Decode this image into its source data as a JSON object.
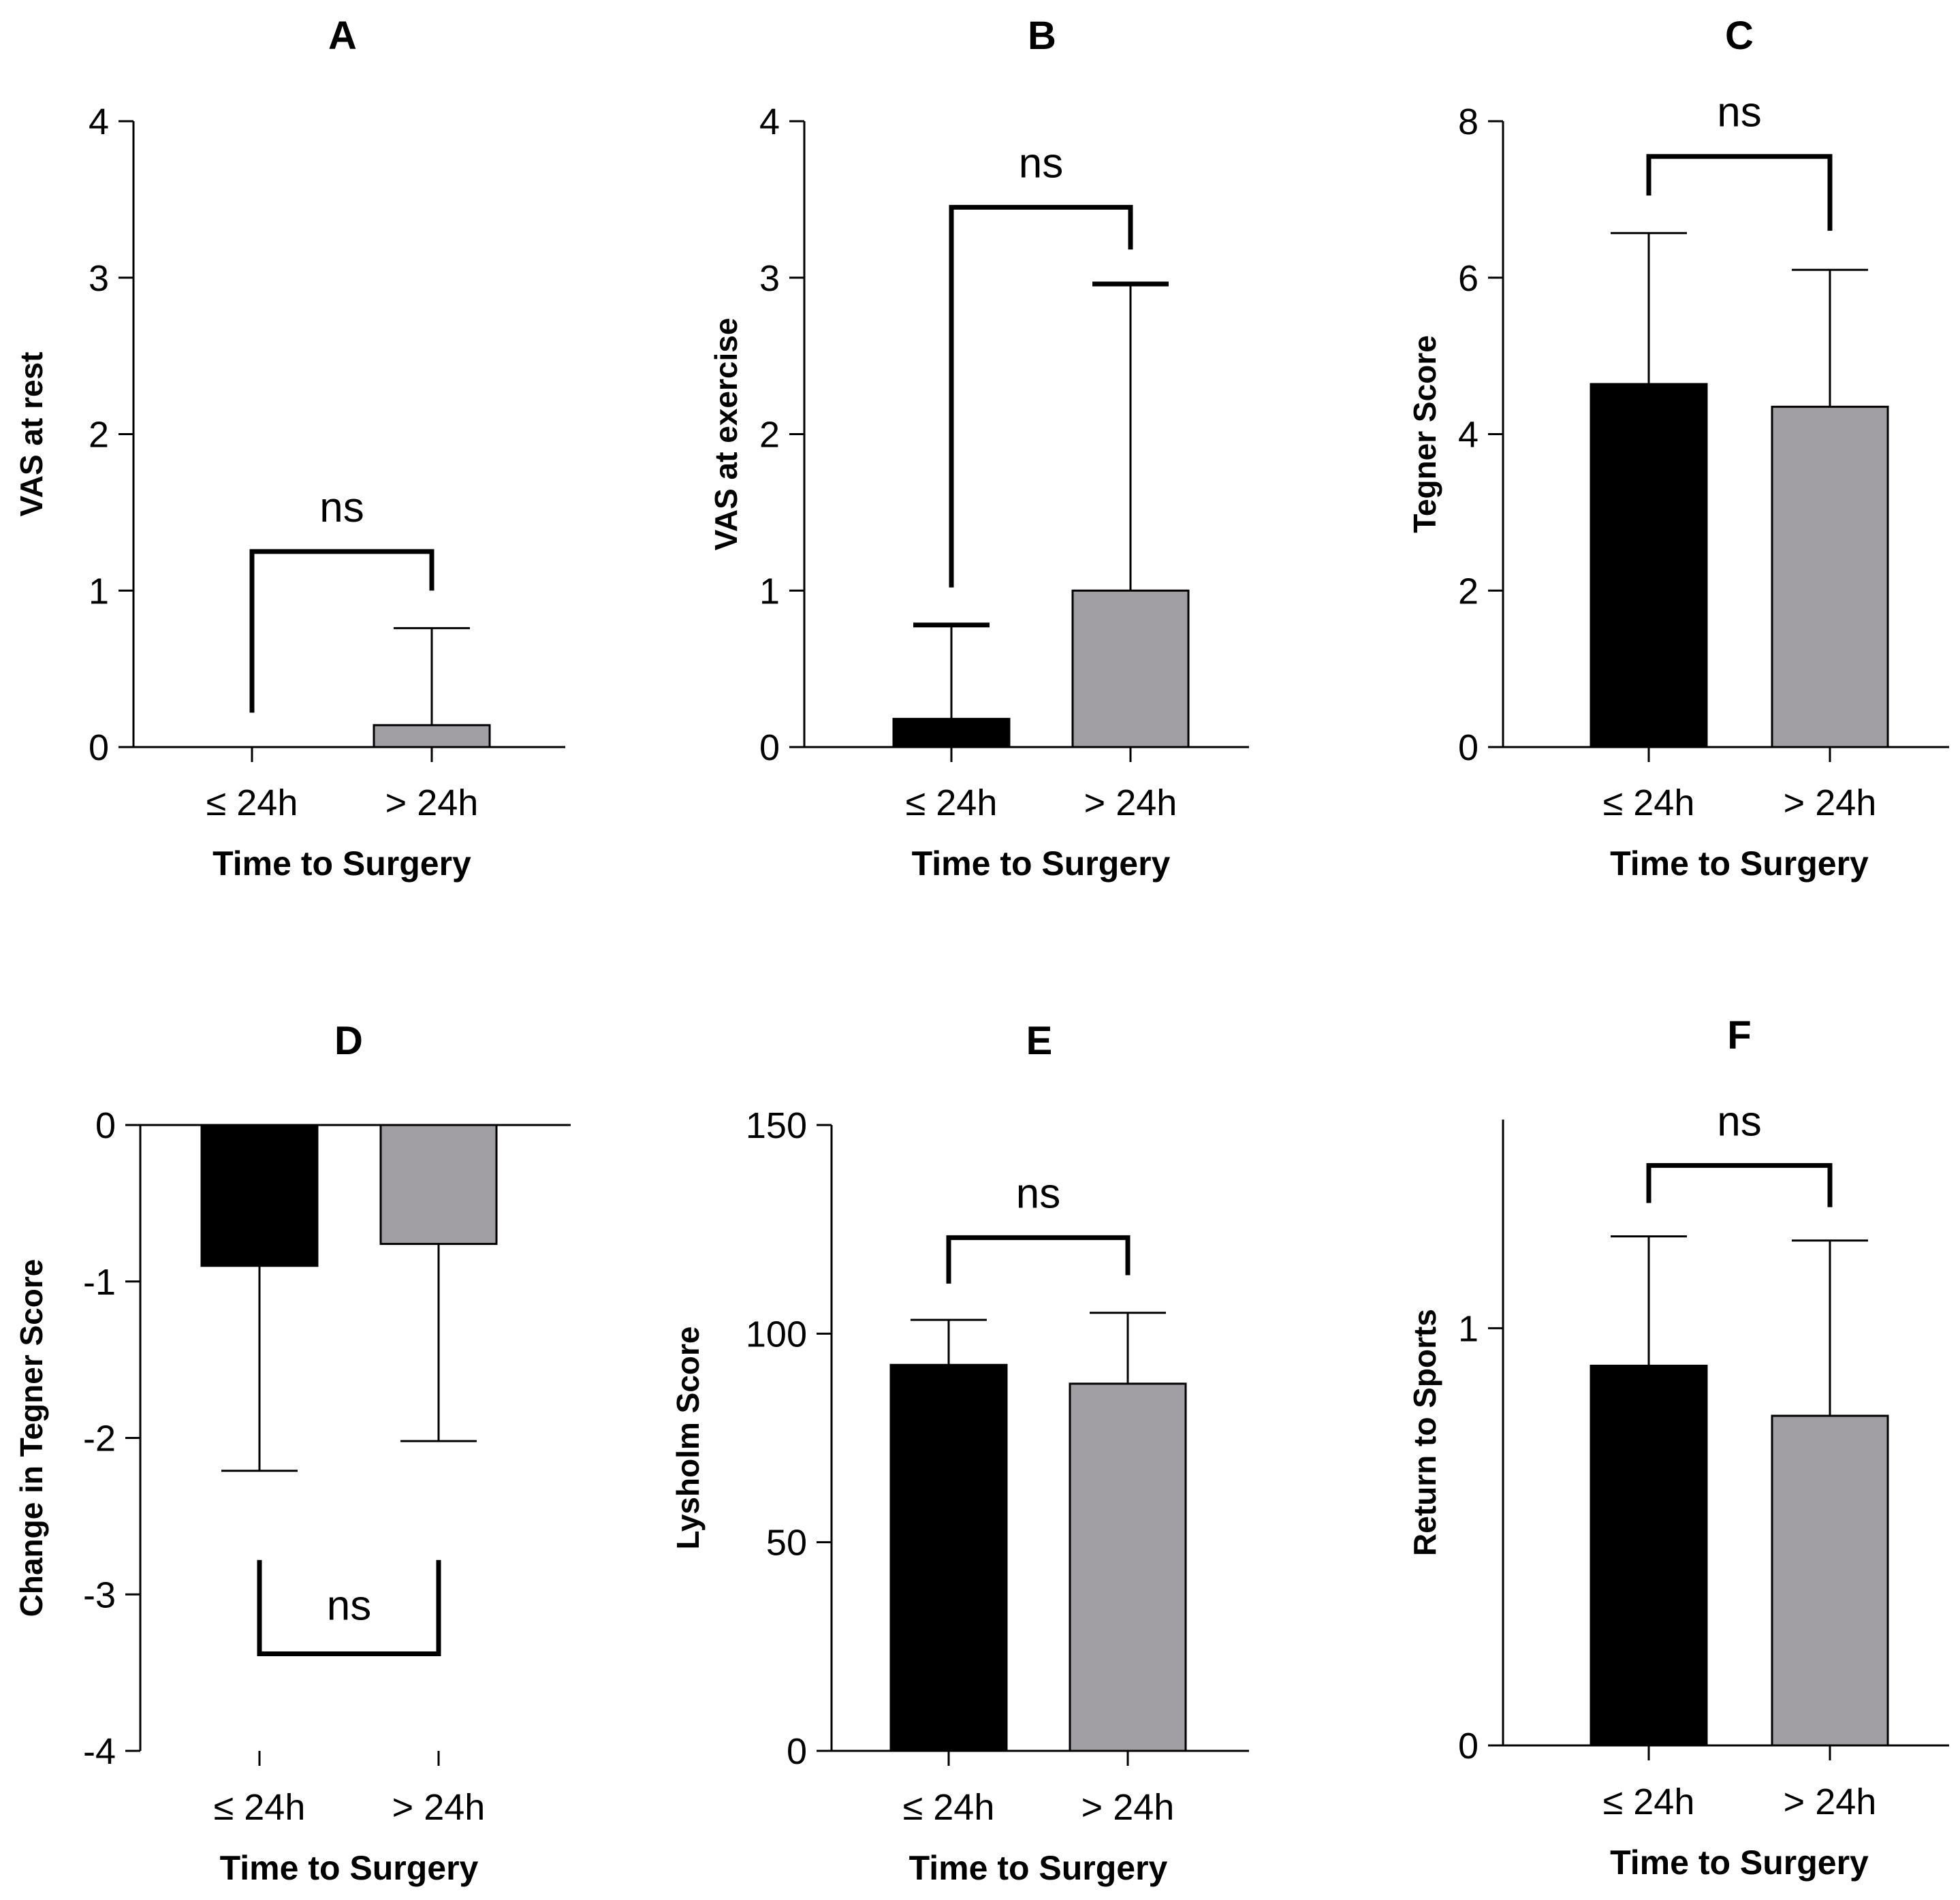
{
  "chart_data": [
    {
      "id": "A",
      "type": "bar",
      "title": "A",
      "xlabel": "Time to Surgery",
      "ylabel": "VAS at rest",
      "categories": [
        "≤ 24h",
        "> 24h"
      ],
      "values": [
        0,
        0.14
      ],
      "error_upper": [
        0,
        0.62
      ],
      "colors": [
        "#000000",
        "#a19fa4"
      ],
      "ylim": [
        0,
        4
      ],
      "yticks": [
        0,
        1,
        2,
        3,
        4
      ],
      "ytick_labels": [
        "0",
        "1",
        "2",
        "3",
        "4"
      ],
      "significance": {
        "label": "ns",
        "from": 0,
        "to": 1,
        "y": 1.25,
        "leg_ends": [
          0.22,
          1.0
        ],
        "side": "above"
      }
    },
    {
      "id": "B",
      "type": "bar",
      "title": "B",
      "xlabel": "Time to Surgery",
      "ylabel": "VAS at exercise",
      "categories": [
        "≤ 24h",
        "> 24h"
      ],
      "values": [
        0.18,
        1.0
      ],
      "error_upper": [
        0.6,
        1.96
      ],
      "colors": [
        "#000000",
        "#a19fa4"
      ],
      "ylim": [
        0,
        4
      ],
      "yticks": [
        0,
        1,
        2,
        3,
        4
      ],
      "ytick_labels": [
        "0",
        "1",
        "2",
        "3",
        "4"
      ],
      "significance": {
        "label": "ns",
        "from": 0,
        "to": 1,
        "y": 3.45,
        "leg_ends": [
          1.02,
          3.18
        ],
        "side": "above"
      }
    },
    {
      "id": "C",
      "type": "bar",
      "title": "C",
      "xlabel": "Time to Surgery",
      "ylabel": "Tegner Score",
      "categories": [
        "≤ 24h",
        "> 24h"
      ],
      "values": [
        4.64,
        4.35
      ],
      "error_upper": [
        1.93,
        1.75
      ],
      "colors": [
        "#000000",
        "#a19fa4"
      ],
      "ylim": [
        0,
        8
      ],
      "yticks": [
        0,
        2,
        4,
        6,
        8
      ],
      "ytick_labels": [
        "0",
        "2",
        "4",
        "6",
        "8"
      ],
      "significance": {
        "label": "ns",
        "from": 0,
        "to": 1,
        "y": 7.55,
        "leg_ends": [
          7.05,
          6.6
        ],
        "side": "above"
      }
    },
    {
      "id": "D",
      "type": "bar",
      "title": "D",
      "xlabel": "Time to Surgery",
      "ylabel": "Change in Tegner Score",
      "categories": [
        "≤ 24h",
        "> 24h"
      ],
      "values": [
        -0.9,
        -0.76
      ],
      "error_lower": [
        1.31,
        1.26
      ],
      "colors": [
        "#000000",
        "#a19fa4"
      ],
      "ylim": [
        -4,
        0
      ],
      "yticks": [
        -4,
        -3,
        -2,
        -1,
        0
      ],
      "ytick_labels": [
        "-4",
        "-3",
        "-2",
        "-1",
        "0"
      ],
      "significance": {
        "label": "ns",
        "from": 0,
        "to": 1,
        "y": -3.38,
        "leg_ends": [
          -2.78,
          -2.78
        ],
        "side": "below"
      }
    },
    {
      "id": "E",
      "type": "bar",
      "title": "E",
      "xlabel": "Time to Surgery",
      "ylabel": "Lysholm Score",
      "categories": [
        "≤ 24h",
        "> 24h"
      ],
      "values": [
        92.5,
        88
      ],
      "error_upper": [
        10.8,
        17
      ],
      "colors": [
        "#000000",
        "#a19fa4"
      ],
      "ylim": [
        0,
        150
      ],
      "yticks": [
        0,
        50,
        100,
        150
      ],
      "ytick_labels": [
        "0",
        "50",
        "100",
        "150"
      ],
      "significance": {
        "label": "ns",
        "from": 0,
        "to": 1,
        "y": 123,
        "leg_ends": [
          112,
          114
        ],
        "side": "above"
      }
    },
    {
      "id": "F",
      "type": "bar",
      "title": "F",
      "xlabel": "Time to Surgery",
      "ylabel": "Return to Sports",
      "categories": [
        "≤ 24h",
        "> 24h"
      ],
      "values": [
        0.91,
        0.79
      ],
      "error_upper": [
        0.31,
        0.42
      ],
      "colors": [
        "#000000",
        "#a19fa4"
      ],
      "ylim": [
        0,
        1.5
      ],
      "yticks": [
        0,
        1
      ],
      "ytick_labels": [
        "0",
        "1"
      ],
      "significance": {
        "label": "ns",
        "from": 0,
        "to": 1,
        "y": 1.39,
        "leg_ends": [
          1.3,
          1.29
        ],
        "side": "above"
      }
    }
  ]
}
